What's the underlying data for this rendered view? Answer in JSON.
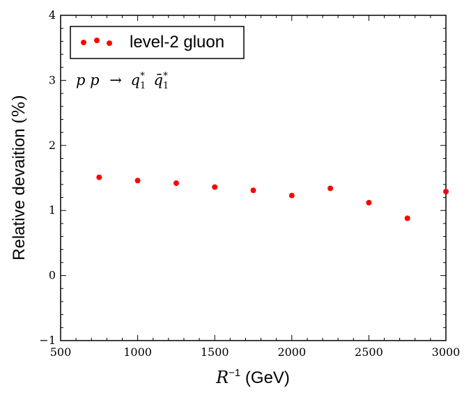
{
  "chart_data": {
    "type": "scatter",
    "xlabel_math": "R",
    "xlabel_exp": "−1",
    "xlabel_unit": " (GeV)",
    "ylabel_text": "Relative devaition ",
    "ylabel_unit": "(%)",
    "xlim": [
      500,
      3000
    ],
    "ylim": [
      -1,
      4
    ],
    "x_ticks": [
      "500",
      "1000",
      "1500",
      "2000",
      "2500",
      "3000"
    ],
    "y_ticks": [
      "−1",
      "0",
      "1",
      "2",
      "3",
      "4"
    ],
    "grid": false,
    "legend_position": "top-left",
    "annotation": {
      "part1": "p p",
      "arrow": "→",
      "q": "q",
      "qbar": "q̄",
      "sub": "1",
      "sup": "*"
    },
    "series": [
      {
        "name": "level-2 gluon",
        "color": "#ff0000",
        "marker": "circle",
        "x": [
          750,
          1000,
          1250,
          1500,
          1750,
          2000,
          2250,
          2500,
          2750,
          3000
        ],
        "y": [
          1.51,
          1.46,
          1.42,
          1.36,
          1.31,
          1.23,
          1.34,
          1.12,
          0.88,
          1.29
        ]
      }
    ]
  }
}
